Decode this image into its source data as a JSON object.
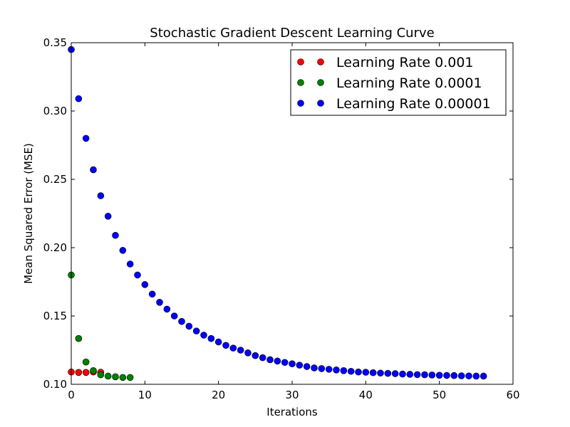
{
  "chart_data": {
    "type": "scatter",
    "title": "Stochastic Gradient Descent Learning Curve",
    "xlabel": "Iterations",
    "ylabel": "Mean Squared Error (MSE)",
    "xlim": [
      0,
      60
    ],
    "ylim": [
      0.1,
      0.35
    ],
    "xticks": [
      0,
      10,
      20,
      30,
      40,
      50,
      60
    ],
    "yticks": [
      0.1,
      0.15,
      0.2,
      0.25,
      0.3,
      0.35
    ],
    "xtick_labels": [
      "0",
      "10",
      "20",
      "30",
      "40",
      "50",
      "60"
    ],
    "ytick_labels": [
      "0.10",
      "0.15",
      "0.20",
      "0.25",
      "0.30",
      "0.35"
    ],
    "grid": false,
    "legend_position": "top-right",
    "series": [
      {
        "name": "Learning Rate 0.001",
        "color": "#ff0000",
        "x": [
          0,
          1,
          2,
          3,
          4
        ],
        "y": [
          0.109,
          0.1087,
          0.1087,
          0.109,
          0.1088
        ]
      },
      {
        "name": "Learning Rate 0.0001",
        "color": "#008000",
        "x": [
          0,
          1,
          2,
          3,
          4,
          5,
          6,
          7,
          8
        ],
        "y": [
          0.18,
          0.1335,
          0.1163,
          0.11,
          0.107,
          0.106,
          0.1055,
          0.105,
          0.105
        ]
      },
      {
        "name": "Learning Rate 0.00001",
        "color": "#0000ff",
        "x": [
          0,
          1,
          2,
          3,
          4,
          5,
          6,
          7,
          8,
          9,
          10,
          11,
          12,
          13,
          14,
          15,
          16,
          17,
          18,
          19,
          20,
          21,
          22,
          23,
          24,
          25,
          26,
          27,
          28,
          29,
          30,
          31,
          32,
          33,
          34,
          35,
          36,
          37,
          38,
          39,
          40,
          41,
          42,
          43,
          44,
          45,
          46,
          47,
          48,
          49,
          50,
          51,
          52,
          53,
          54,
          55,
          56
        ],
        "y": [
          0.345,
          0.309,
          0.28,
          0.257,
          0.238,
          0.223,
          0.209,
          0.198,
          0.188,
          0.18,
          0.173,
          0.166,
          0.16,
          0.155,
          0.15,
          0.146,
          0.1425,
          0.139,
          0.136,
          0.1335,
          0.131,
          0.1285,
          0.1265,
          0.125,
          0.123,
          0.121,
          0.1195,
          0.118,
          0.117,
          0.116,
          0.115,
          0.114,
          0.113,
          0.112,
          0.1115,
          0.111,
          0.1105,
          0.11,
          0.1095,
          0.109,
          0.1088,
          0.1085,
          0.1082,
          0.108,
          0.1078,
          0.1075,
          0.1073,
          0.1071,
          0.107,
          0.1068,
          0.1066,
          0.1065,
          0.1064,
          0.1062,
          0.1061,
          0.106,
          0.106
        ]
      }
    ]
  }
}
